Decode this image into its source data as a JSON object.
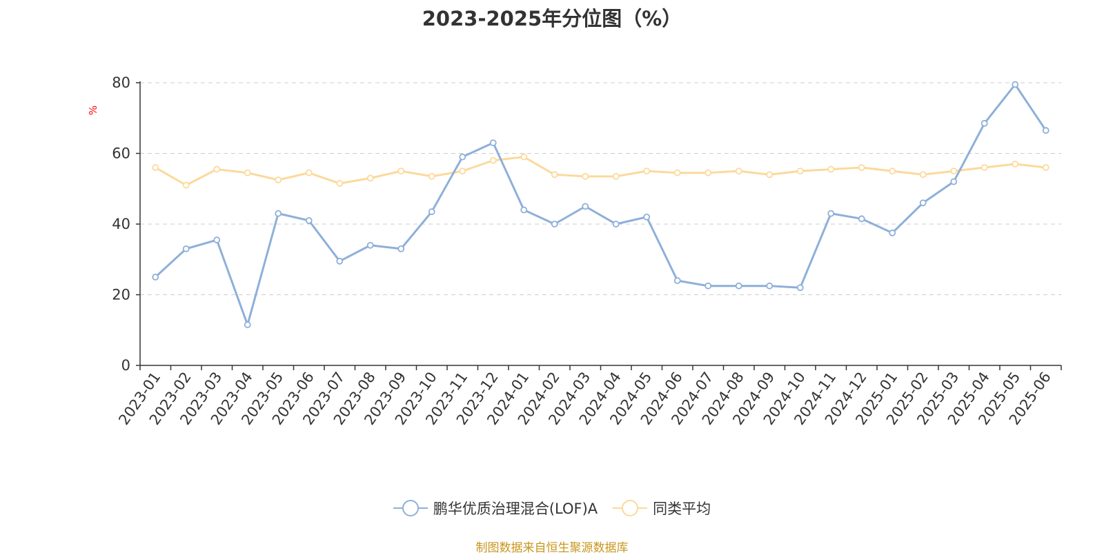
{
  "title": "2023-2025年分位图（%）",
  "source": "制图数据来自恒生聚源数据库",
  "colors": {
    "series1": "#8eafd9",
    "series2": "#fcd99a",
    "grid": "#cccccc",
    "axis": "#333333",
    "unit": "#ff0000",
    "source": "#c8961f"
  },
  "chart_data": {
    "type": "line",
    "title": "2023-2025年分位图（%）",
    "ylabel": "%",
    "xlabel": "",
    "ylim": [
      0,
      80
    ],
    "yticks": [
      0,
      20,
      40,
      60,
      80
    ],
    "grid": true,
    "legend_position": "bottom",
    "categories": [
      "2023-01",
      "2023-02",
      "2023-03",
      "2023-04",
      "2023-05",
      "2023-06",
      "2023-07",
      "2023-08",
      "2023-09",
      "2023-10",
      "2023-11",
      "2023-12",
      "2024-01",
      "2024-02",
      "2024-03",
      "2024-04",
      "2024-05",
      "2024-06",
      "2024-07",
      "2024-08",
      "2024-09",
      "2024-10",
      "2024-11",
      "2024-12",
      "2025-01",
      "2025-02",
      "2025-03",
      "2025-04",
      "2025-05",
      "2025-06"
    ],
    "series": [
      {
        "name": "鹏华优质治理混合(LOF)A",
        "values": [
          25,
          33,
          35.5,
          11.5,
          43,
          41,
          29.5,
          34,
          33,
          43.5,
          59,
          63,
          44,
          40,
          45,
          40,
          42,
          24,
          22.5,
          22.5,
          22.5,
          22,
          43,
          41.5,
          37.5,
          46,
          52,
          68.5,
          79.5,
          66.5
        ]
      },
      {
        "name": "同类平均",
        "values": [
          56,
          51,
          55.5,
          54.5,
          52.5,
          54.5,
          51.5,
          53,
          55,
          53.5,
          55,
          58,
          59,
          54,
          53.5,
          53.5,
          55,
          54.5,
          54.5,
          55,
          54,
          55,
          55.5,
          56,
          55,
          54,
          55,
          56,
          57,
          56
        ]
      }
    ]
  }
}
